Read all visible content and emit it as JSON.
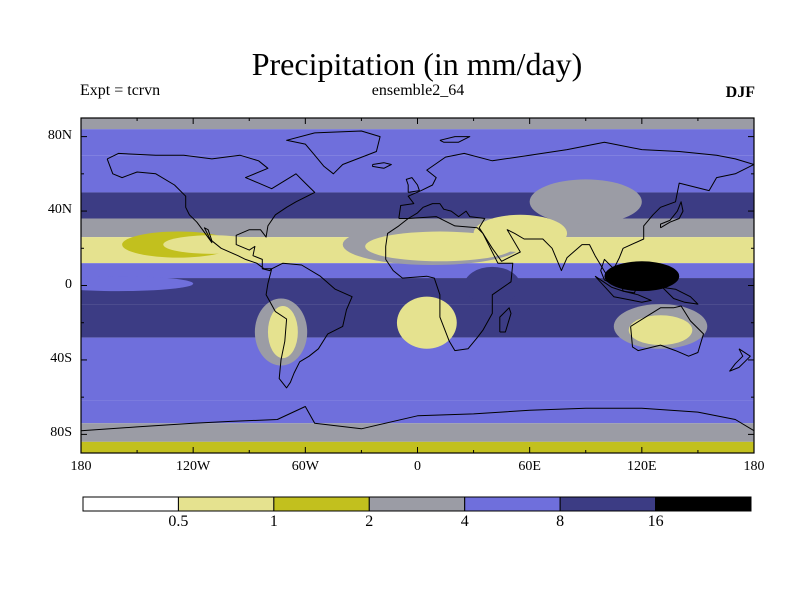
{
  "title": "Precipitation (in mm/day)",
  "left_label": "Expt = tcrvn",
  "center_label": "ensemble2_64",
  "right_label": "DJF",
  "y_ticks": [
    "80N",
    "40N",
    "0",
    "40S",
    "80S"
  ],
  "x_ticks": [
    "180",
    "120W",
    "60W",
    "0",
    "60E",
    "120E",
    "180"
  ],
  "colorbar": {
    "levels": [
      "0.5",
      "1",
      "2",
      "4",
      "8",
      "16"
    ],
    "colors": [
      "#ffffff",
      "#e5e28f",
      "#c2c01e",
      "#9b9ca5",
      "#6f6fdc",
      "#3c3c84",
      "#000000"
    ]
  },
  "chart_data": {
    "type": "heatmap",
    "title": "Precipitation (in mm/day)",
    "xlabel": "",
    "ylabel": "",
    "xlim": [
      -180,
      180
    ],
    "ylim": [
      -90,
      90
    ],
    "season": "DJF",
    "experiment": "tcrvn",
    "dataset": "ensemble2_64",
    "units": "mm/day",
    "levels": [
      0.5,
      1,
      2,
      4,
      8,
      16
    ],
    "bands": [
      {
        "lat_max": 90,
        "lat_min": 84,
        "value": 2
      },
      {
        "lat_max": 84,
        "lat_min": 70,
        "value": 4
      },
      {
        "lat_max": 70,
        "lat_min": 50,
        "value": 4
      },
      {
        "lat_max": 50,
        "lat_min": 36,
        "value": 8
      },
      {
        "lat_max": 36,
        "lat_min": 26,
        "value": 2
      },
      {
        "lat_max": 26,
        "lat_min": 12,
        "value": 0.5
      },
      {
        "lat_max": 12,
        "lat_min": 4,
        "value": 4
      },
      {
        "lat_max": 4,
        "lat_min": -10,
        "value": 8
      },
      {
        "lat_max": -10,
        "lat_min": -28,
        "value": 8
      },
      {
        "lat_max": -28,
        "lat_min": -62,
        "value": 4
      },
      {
        "lat_max": -62,
        "lat_min": -74,
        "value": 4
      },
      {
        "lat_max": -74,
        "lat_min": -84,
        "value": 2
      },
      {
        "lat_max": -84,
        "lat_min": -90,
        "value": 1
      }
    ],
    "blobs": [
      {
        "lon": 8,
        "lat": 22,
        "rlon": 48,
        "rlat": 11,
        "value": 2
      },
      {
        "lon": 12,
        "lat": 21,
        "rlon": 40,
        "rlat": 8,
        "value": 0.5
      },
      {
        "lon": -128,
        "lat": 22,
        "rlon": 30,
        "rlat": 7,
        "value": 1
      },
      {
        "lon": -110,
        "lat": 22,
        "rlon": 26,
        "rlat": 5,
        "value": 0.5
      },
      {
        "lon": 55,
        "lat": 28,
        "rlon": 25,
        "rlat": 10,
        "value": 0.5
      },
      {
        "lon": 90,
        "lat": 45,
        "rlon": 30,
        "rlat": 12,
        "value": 2
      },
      {
        "lon": -73,
        "lat": -25,
        "rlon": 14,
        "rlat": 18,
        "value": 2
      },
      {
        "lon": -72,
        "lat": -25,
        "rlon": 8,
        "rlat": 14,
        "value": 0.5
      },
      {
        "lon": 5,
        "lat": -20,
        "rlon": 16,
        "rlat": 14,
        "value": 0.5
      },
      {
        "lon": 130,
        "lat": -22,
        "rlon": 25,
        "rlat": 12,
        "value": 2
      },
      {
        "lon": 130,
        "lat": -24,
        "rlon": 17,
        "rlat": 8,
        "value": 0.5
      },
      {
        "lon": 120,
        "lat": 5,
        "rlon": 20,
        "rlat": 8,
        "value": 16
      },
      {
        "lon": -160,
        "lat": 1,
        "rlon": 40,
        "rlat": 4,
        "value": 4
      },
      {
        "lon": 40,
        "lat": 0,
        "rlon": 15,
        "rlat": 10,
        "value": 8
      }
    ]
  }
}
